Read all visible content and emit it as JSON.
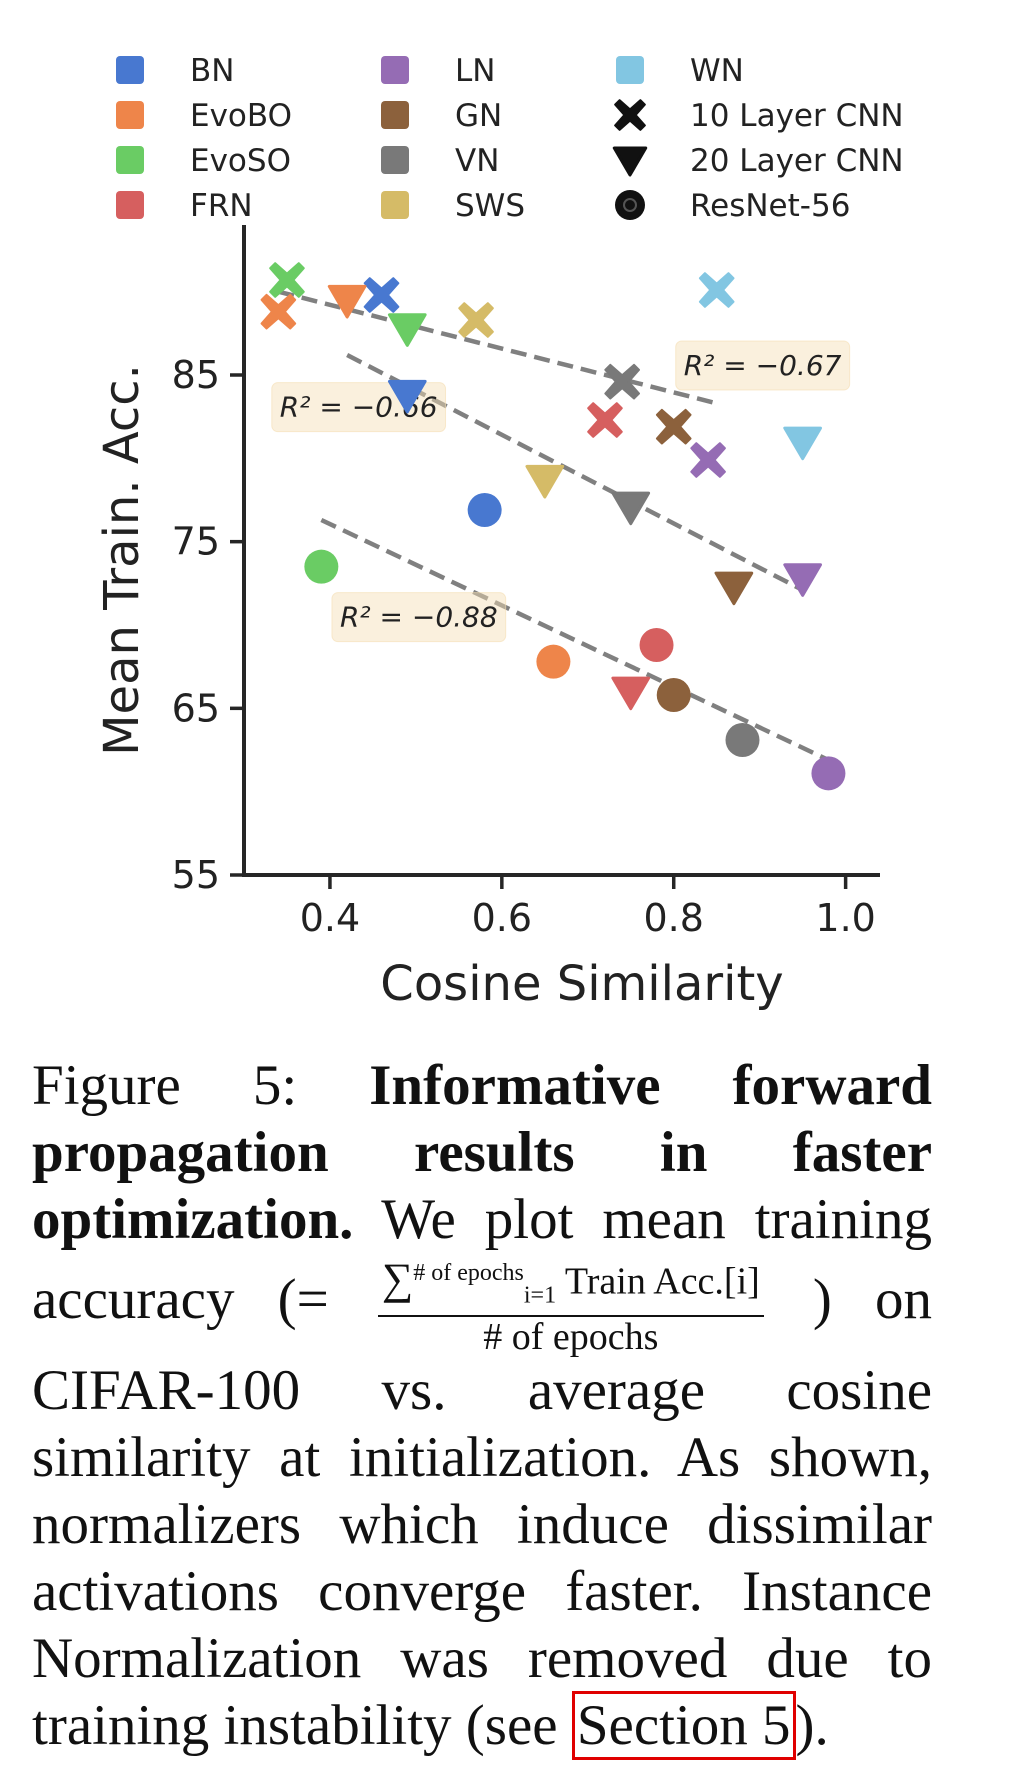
{
  "chart_data": {
    "type": "scatter",
    "xlabel": "Cosine Similarity",
    "ylabel": "Mean Train. Acc.",
    "xlim": [
      0.3,
      1.04
    ],
    "ylim": [
      55,
      94
    ],
    "x_ticks": [
      "0.4",
      "0.6",
      "0.8",
      "1.0"
    ],
    "y_ticks": [
      "55",
      "65",
      "75",
      "85"
    ],
    "colors": {
      "BN": "#4878d0",
      "EvoBO": "#ee854a",
      "EvoSO": "#6acc64",
      "FRN": "#d65f5f",
      "LN": "#956cb4",
      "GN": "#8c613c",
      "VN": "#797979",
      "SWS": "#d5bb67",
      "WN": "#82c6e2"
    },
    "legend": {
      "placement": "top",
      "normalizers": [
        "BN",
        "EvoBO",
        "EvoSO",
        "FRN",
        "LN",
        "GN",
        "VN",
        "SWS",
        "WN"
      ],
      "architectures": [
        {
          "label": "10 Layer CNN",
          "marker": "x"
        },
        {
          "label": "20 Layer CNN",
          "marker": "triangle-down"
        },
        {
          "label": "ResNet-56",
          "marker": "circle"
        }
      ]
    },
    "series": [
      {
        "name": "10 Layer CNN",
        "marker": "x",
        "points": [
          {
            "label": "BN",
            "x": 0.46,
            "y": 89.8
          },
          {
            "label": "EvoBO",
            "x": 0.34,
            "y": 88.8
          },
          {
            "label": "EvoSO",
            "x": 0.35,
            "y": 90.7
          },
          {
            "label": "FRN",
            "x": 0.72,
            "y": 82.3
          },
          {
            "label": "LN",
            "x": 0.84,
            "y": 79.9
          },
          {
            "label": "GN",
            "x": 0.8,
            "y": 81.9
          },
          {
            "label": "VN",
            "x": 0.74,
            "y": 84.6
          },
          {
            "label": "SWS",
            "x": 0.57,
            "y": 88.3
          },
          {
            "label": "WN",
            "x": 0.85,
            "y": 90.1
          }
        ],
        "fit": {
          "x": [
            0.34,
            0.85
          ],
          "y": [
            90.0,
            83.3
          ]
        },
        "r2_label": "R² = −0.67"
      },
      {
        "name": "20 Layer CNN",
        "marker": "triangle-down",
        "points": [
          {
            "label": "BN",
            "x": 0.49,
            "y": 83.8
          },
          {
            "label": "EvoBO",
            "x": 0.42,
            "y": 89.5
          },
          {
            "label": "EvoSO",
            "x": 0.49,
            "y": 87.8
          },
          {
            "label": "FRN",
            "x": 0.75,
            "y": 66.0
          },
          {
            "label": "LN",
            "x": 0.95,
            "y": 72.8
          },
          {
            "label": "GN",
            "x": 0.87,
            "y": 72.3
          },
          {
            "label": "VN",
            "x": 0.75,
            "y": 77.1
          },
          {
            "label": "SWS",
            "x": 0.65,
            "y": 78.7
          },
          {
            "label": "WN",
            "x": 0.95,
            "y": 81.0
          }
        ],
        "fit": {
          "x": [
            0.42,
            0.95
          ],
          "y": [
            86.2,
            72.1
          ]
        },
        "r2_label": "R² = −0.66"
      },
      {
        "name": "ResNet-56",
        "marker": "circle",
        "points": [
          {
            "label": "BN",
            "x": 0.58,
            "y": 76.9
          },
          {
            "label": "EvoBO",
            "x": 0.66,
            "y": 67.8
          },
          {
            "label": "EvoSO",
            "x": 0.39,
            "y": 73.5
          },
          {
            "label": "FRN",
            "x": 0.78,
            "y": 68.8
          },
          {
            "label": "LN",
            "x": 0.98,
            "y": 61.1
          },
          {
            "label": "GN",
            "x": 0.8,
            "y": 65.8
          },
          {
            "label": "VN",
            "x": 0.88,
            "y": 63.1
          }
        ],
        "fit": {
          "x": [
            0.39,
            0.98
          ],
          "y": [
            76.3,
            61.9
          ]
        },
        "r2_label": "R² = −0.88"
      }
    ]
  },
  "caption": {
    "label": "Figure 5:",
    "bold": "Informative forward propagation results in faster optimization.",
    "text1": "We plot mean training accuracy (=",
    "frac_sum": "∑",
    "frac_sup": "# of epochs",
    "frac_sub": "i=1",
    "frac_num_rest": "Train Acc.[i]",
    "frac_den": "# of epochs",
    "text2": ") on CIFAR-100 vs. average cosine similarity at initialization. As shown, normalizers which induce dissimilar activations converge faster. Instance Normalization was removed due to training instability (see",
    "link": "Section 5",
    "text3": ")."
  }
}
